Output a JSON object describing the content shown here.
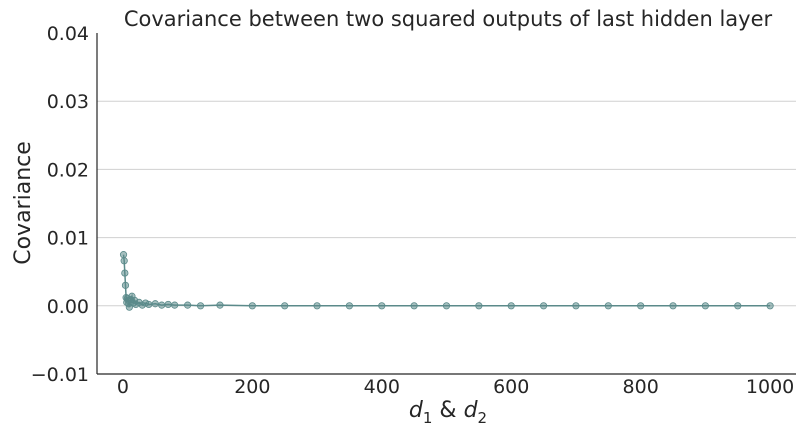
{
  "chart_data": {
    "type": "line",
    "title": "Covariance between two squared outputs of last hidden layer",
    "xlabel": {
      "base": "d",
      "sub1": "1",
      "amp": " & ",
      "sub2": "2"
    },
    "ylabel": "Covariance",
    "xlim": [
      -40,
      1040
    ],
    "ylim": [
      -0.01,
      0.04
    ],
    "xticks": [
      0,
      200,
      400,
      600,
      800,
      1000
    ],
    "xtick_labels": [
      "0",
      "200",
      "400",
      "600",
      "800",
      "1000"
    ],
    "yticks": [
      -0.01,
      0.0,
      0.01,
      0.02,
      0.03,
      0.04
    ],
    "ytick_labels": [
      "−0.01",
      "0.00",
      "0.01",
      "0.02",
      "0.03",
      "0.04"
    ],
    "grid": "horizontal",
    "series_color": "#5b8a8a",
    "series": [
      {
        "x": [
          1,
          2,
          3,
          4,
          5,
          6,
          7,
          8,
          9,
          10,
          12,
          14,
          16,
          18,
          20,
          25,
          30,
          35,
          40,
          50,
          60,
          70,
          80,
          100,
          120,
          150,
          200,
          250,
          300,
          350,
          400,
          450,
          500,
          550,
          600,
          650,
          700,
          750,
          800,
          850,
          900,
          950,
          1000
        ],
        "y": [
          0.0075,
          0.0066,
          0.0048,
          0.003,
          0.0012,
          0.0005,
          0.0011,
          0.0008,
          0.0003,
          -0.0002,
          0.0009,
          0.0014,
          0.0004,
          0.0008,
          0.0002,
          0.0005,
          0.0001,
          0.0004,
          0.0002,
          0.0003,
          0.0001,
          0.0002,
          0.0001,
          0.0001,
          0.0,
          0.0001,
          0.0,
          0.0,
          0.0,
          0.0,
          0.0,
          0.0,
          0.0,
          0.0,
          0.0,
          0.0,
          0.0,
          0.0,
          0.0,
          0.0,
          0.0,
          0.0,
          0.0
        ]
      }
    ]
  }
}
